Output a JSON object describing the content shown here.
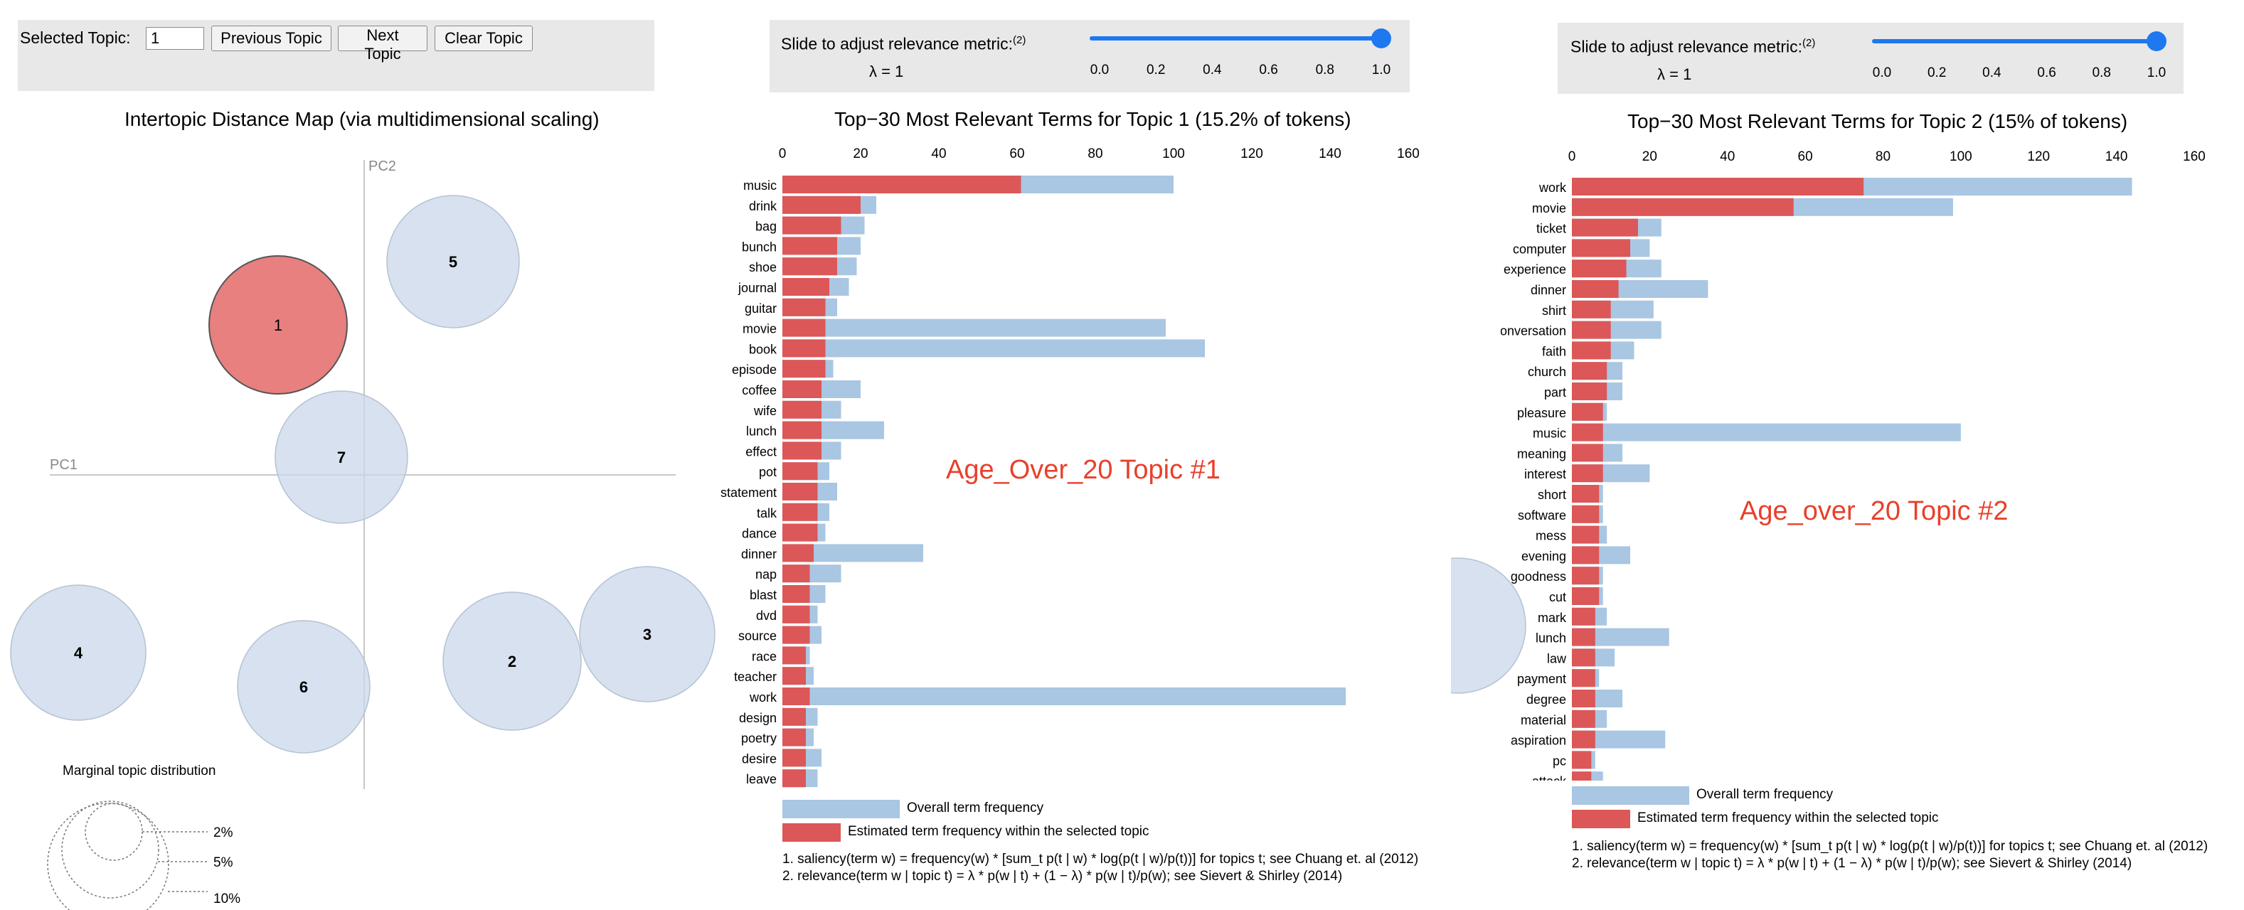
{
  "topic_controls": {
    "selected_label": "Selected Topic:",
    "selected_value": "1",
    "prev_label": "Previous Topic",
    "next_label": "Next Topic",
    "clear_label": "Clear Topic"
  },
  "relevance_panels": [
    {
      "label": "Slide to adjust relevance metric:",
      "sup": "(2)",
      "lambda_text": "λ = 1",
      "value": 1.0,
      "ticks": [
        "0.0",
        "0.2",
        "0.4",
        "0.6",
        "0.8",
        "1.0"
      ]
    },
    {
      "label": "Slide to adjust relevance metric:",
      "sup": "(2)",
      "lambda_text": "λ = 1",
      "value": 1.0,
      "ticks": [
        "0.0",
        "0.2",
        "0.4",
        "0.6",
        "0.8",
        "1.0"
      ]
    }
  ],
  "map": {
    "title": "Intertopic Distance Map (via multidimensional scaling)",
    "pc1_label": "PC1",
    "pc2_label": "PC2",
    "marginal_title": "Marginal topic distribution",
    "marginal_levels": [
      "2%",
      "5%",
      "10%"
    ],
    "selected_color": "#e88080",
    "bubble_color": "#c9d7ea",
    "topics": [
      {
        "id": "1",
        "selected": true
      },
      {
        "id": "2",
        "selected": false
      },
      {
        "id": "3",
        "selected": false
      },
      {
        "id": "4",
        "selected": false
      },
      {
        "id": "5",
        "selected": false
      },
      {
        "id": "6",
        "selected": false
      },
      {
        "id": "7",
        "selected": false
      }
    ]
  },
  "colors": {
    "overall": "#a9c6e3",
    "topic": "#dc5757",
    "overlay_text": "#e8402b"
  },
  "charts": [
    {
      "title": "Top−30 Most Relevant Terms for Topic 1 (15.2% of tokens)",
      "overlay": "Age_Over_20 Topic #1",
      "legend_overall": "Overall term frequency",
      "legend_topic": "Estimated term frequency within the selected topic",
      "note1": "1. saliency(term w) = frequency(w) * [sum_t p(t | w) * log(p(t | w)/p(t))] for topics t; see Chuang et. al (2012)",
      "note2": "2. relevance(term w | topic t) = λ * p(w | t) + (1 − λ) * p(w | t)/p(w); see Sievert & Shirley (2014)"
    },
    {
      "title": "Top−30 Most Relevant Terms for Topic 2 (15% of tokens)",
      "overlay": "Age_over_20 Topic #2",
      "legend_overall": "Overall term frequency",
      "legend_topic": "Estimated term frequency within the selected topic",
      "note1": "1. saliency(term w) = frequency(w) * [sum_t p(t | w) * log(p(t | w)/p(t))] for topics t; see Chuang et. al (2012)",
      "note2": "2. relevance(term w | topic t) = λ * p(w | t) + (1 − λ) * p(w | t)/p(w); see Sievert & Shirley (2014)"
    }
  ],
  "chart_data": [
    {
      "type": "bar",
      "orientation": "horizontal",
      "xlim": [
        0,
        160
      ],
      "xticks": [
        0,
        20,
        40,
        60,
        80,
        100,
        120,
        140,
        160
      ],
      "categories": [
        "music",
        "drink",
        "bag",
        "bunch",
        "shoe",
        "journal",
        "guitar",
        "movie",
        "book",
        "episode",
        "coffee",
        "wife",
        "lunch",
        "effect",
        "pot",
        "statement",
        "talk",
        "dance",
        "dinner",
        "nap",
        "blast",
        "dvd",
        "source",
        "race",
        "teacher",
        "work",
        "design",
        "poetry",
        "desire",
        "leave"
      ],
      "series": [
        {
          "name": "Overall term frequency",
          "values": [
            100,
            24,
            21,
            20,
            19,
            17,
            14,
            98,
            108,
            13,
            20,
            15,
            26,
            15,
            12,
            14,
            12,
            11,
            36,
            15,
            11,
            9,
            10,
            7,
            8,
            144,
            9,
            8,
            10,
            9
          ]
        },
        {
          "name": "Estimated term frequency within the selected topic",
          "values": [
            61,
            20,
            15,
            14,
            14,
            12,
            11,
            11,
            11,
            11,
            10,
            10,
            10,
            10,
            9,
            9,
            9,
            9,
            8,
            7,
            7,
            7,
            7,
            6,
            6,
            7,
            6,
            6,
            6,
            6
          ]
        }
      ]
    },
    {
      "type": "bar",
      "orientation": "horizontal",
      "xlim": [
        0,
        160
      ],
      "xticks": [
        0,
        20,
        40,
        60,
        80,
        100,
        120,
        140,
        160
      ],
      "categories": [
        "work",
        "movie",
        "ticket",
        "computer",
        "experience",
        "dinner",
        "shirt",
        "conversation",
        "faith",
        "church",
        "part",
        "pleasure",
        "music",
        "meaning",
        "interest",
        "short",
        "software",
        "mess",
        "evening",
        "goodness",
        "cut",
        "mark",
        "lunch",
        "law",
        "payment",
        "degree",
        "material",
        "aspiration",
        "pc",
        "attack"
      ],
      "series": [
        {
          "name": "Overall term frequency",
          "values": [
            144,
            98,
            23,
            20,
            23,
            35,
            21,
            23,
            16,
            13,
            13,
            9,
            100,
            13,
            20,
            8,
            8,
            9,
            15,
            8,
            8,
            9,
            25,
            11,
            7,
            13,
            9,
            24,
            6,
            8
          ]
        },
        {
          "name": "Estimated term frequency within the selected topic",
          "values": [
            75,
            57,
            17,
            15,
            14,
            12,
            10,
            10,
            10,
            9,
            9,
            8,
            8,
            8,
            8,
            7,
            7,
            7,
            7,
            7,
            7,
            6,
            6,
            6,
            6,
            6,
            6,
            6,
            5,
            5
          ]
        }
      ]
    }
  ]
}
